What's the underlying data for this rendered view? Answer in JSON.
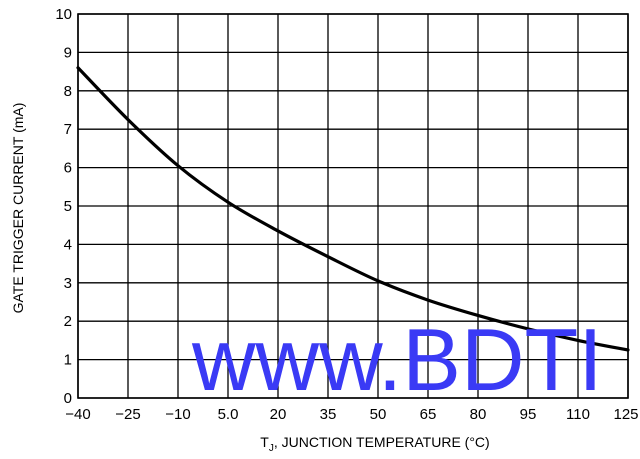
{
  "chart_data": {
    "type": "line",
    "xlabel_main": "T",
    "xlabel_sub": "J",
    "xlabel_rest": ", JUNCTION TEMPERATURE (°C)",
    "ylabel": "GATE TRIGGER CURRENT (mA)",
    "x_ticks": [
      "−40",
      "−25",
      "−10",
      "5.0",
      "20",
      "35",
      "50",
      "65",
      "80",
      "95",
      "110",
      "125"
    ],
    "y_ticks": [
      "0",
      "1",
      "2",
      "3",
      "4",
      "5",
      "6",
      "7",
      "8",
      "9",
      "10"
    ],
    "xlim": [
      -40,
      125
    ],
    "ylim": [
      0,
      10
    ],
    "grid": true,
    "series": [
      {
        "x": [
          -40,
          -25,
          -10,
          5,
          20,
          35,
          50,
          65,
          80,
          95,
          110,
          125
        ],
        "y": [
          8.6,
          7.25,
          6.05,
          5.1,
          4.35,
          3.68,
          3.05,
          2.55,
          2.15,
          1.8,
          1.5,
          1.25
        ]
      }
    ]
  },
  "watermark": "www.BDTI"
}
